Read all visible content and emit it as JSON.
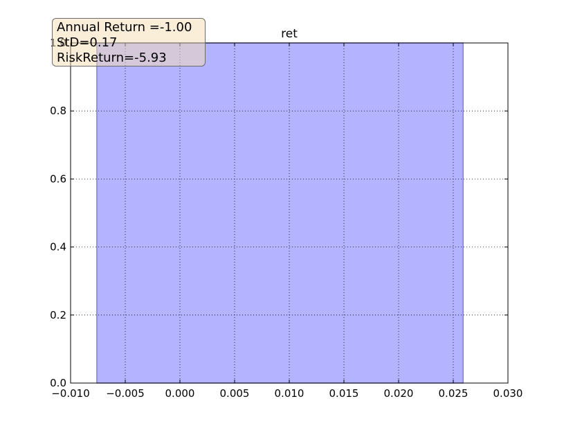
{
  "chart_data": {
    "type": "area",
    "title": "ret",
    "xlabel": "",
    "ylabel": "",
    "xlim": [
      -0.01,
      0.03
    ],
    "ylim": [
      0.0,
      1.0
    ],
    "x_ticks": [
      "−0.010",
      "−0.005",
      "0.000",
      "0.005",
      "0.010",
      "0.015",
      "0.020",
      "0.025",
      "0.030"
    ],
    "x_tick_values": [
      -0.01,
      -0.005,
      0.0,
      0.005,
      0.01,
      0.015,
      0.02,
      0.025,
      0.03
    ],
    "y_ticks": [
      "0.0",
      "0.2",
      "0.4",
      "0.6",
      "0.8",
      "1.0"
    ],
    "y_tick_values": [
      0.0,
      0.2,
      0.4,
      0.6,
      0.8,
      1.0
    ],
    "grid": true,
    "series": [
      {
        "x": [
          -0.0076,
          0.0259
        ],
        "y": [
          1.0,
          1.0
        ],
        "color": "#b3b3ff",
        "edge_color": "#8080cc"
      }
    ]
  },
  "annotation": {
    "lines": [
      "Annual Return =-1.00",
      "StD=0.17",
      "RiskReturn=-5.93"
    ],
    "placement": "top-left"
  }
}
